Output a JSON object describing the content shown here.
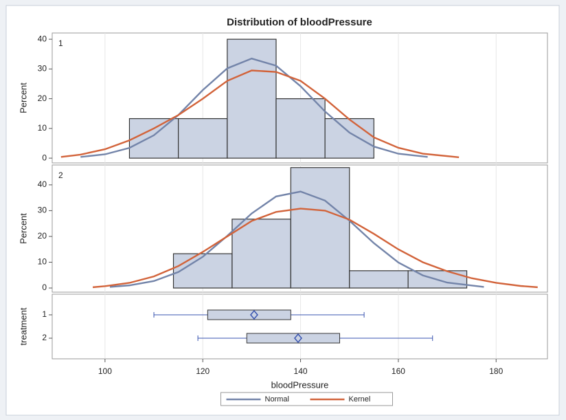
{
  "chart_data": {
    "type": "histogram",
    "title": "Distribution of bloodPressure",
    "xlabel": "bloodPressure",
    "xlim": [
      89.2,
      190.5
    ],
    "xticks": [
      100,
      120,
      140,
      160,
      180
    ],
    "grid": true,
    "legend_position": "bottom",
    "panels": [
      {
        "label": "1",
        "ylabel": "Percent",
        "ylim": [
          -1.6,
          42.1
        ],
        "yticks": [
          0,
          10,
          20,
          30,
          40
        ],
        "color": "#cbd3e3",
        "bins": [
          105,
          115,
          125,
          135,
          145,
          155
        ],
        "values": [
          13.3,
          13.3,
          40,
          20,
          13.3
        ]
      },
      {
        "label": "2",
        "ylabel": "Percent",
        "ylim": [
          -1.6,
          47.7
        ],
        "yticks": [
          0,
          10,
          20,
          30,
          40
        ],
        "color": "#cbd3e3",
        "bins": [
          114,
          126,
          138,
          150,
          162,
          174
        ],
        "values": [
          13.3,
          26.7,
          46.7,
          6.7,
          6.7
        ]
      }
    ],
    "series": [
      {
        "name": "Normal",
        "color": "#7384a9",
        "panels": [
          {
            "x": [
              95,
              100,
              105,
              110,
              115,
              120,
              125,
              130,
              135,
              140,
              145,
              150,
              155,
              160,
              166
            ],
            "values": [
              0.41,
              1.29,
              3.46,
              7.7,
              14.5,
              22.9,
              30.2,
              33.5,
              31.1,
              24.2,
              15.7,
              8.6,
              3.9,
              1.5,
              0.4
            ]
          },
          {
            "x": [
              101,
              105,
              110,
              115,
              120,
              125,
              130,
              135,
              140,
              145,
              150,
              155,
              160,
              165,
              170,
              177.5
            ],
            "values": [
              0.43,
              1.03,
              2.7,
              6.2,
              12.1,
              20.2,
              28.9,
              35.5,
              37.4,
              33.9,
              26.1,
              17.4,
              9.9,
              4.9,
              2.1,
              0.4
            ]
          }
        ]
      },
      {
        "name": "Kernel",
        "color": "#d2633a",
        "panels": [
          {
            "x": [
              91,
              95,
              100,
              105,
              110,
              115,
              120,
              125,
              130,
              135,
              140,
              145,
              150,
              155,
              160,
              165,
              172.4
            ],
            "values": [
              0.4,
              1.2,
              3,
              6,
              10,
              14.5,
              20,
              26,
              29.5,
              29,
              26,
              20,
              13,
              7,
              3.5,
              1.5,
              0.3
            ]
          },
          {
            "x": [
              97.5,
              100,
              105,
              110,
              115,
              120,
              125,
              130,
              135,
              140,
              145,
              150,
              155,
              160,
              165,
              170,
              175,
              180,
              185,
              188.5
            ],
            "values": [
              0.3,
              0.7,
              2,
              4.5,
              8.5,
              14,
              20,
              26,
              29.5,
              30.8,
              30,
              26.5,
              21,
              15,
              10,
              6.5,
              3.8,
              2,
              0.8,
              0.3
            ]
          }
        ]
      }
    ],
    "box": {
      "ylabel": "treatment",
      "categories": [
        "1",
        "2"
      ],
      "color": "#3a55b0",
      "min": [
        110,
        119
      ],
      "q1": [
        121,
        129
      ],
      "q3": [
        138,
        148
      ],
      "max": [
        153,
        167
      ],
      "mean": [
        130.5,
        139.5
      ]
    }
  }
}
